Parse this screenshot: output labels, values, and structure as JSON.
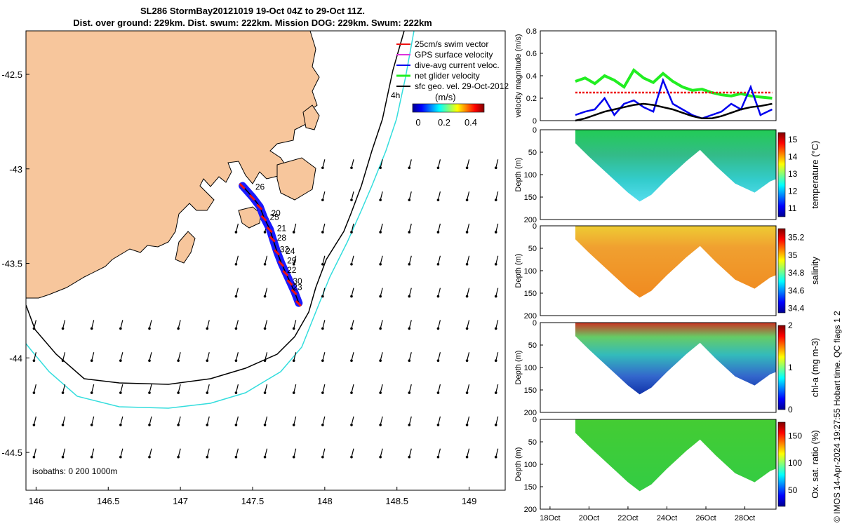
{
  "title_line1": "SL286 StormBay20121019 19-Oct 04Z to 29-Oct 11Z.",
  "title_line2": "Dist. over ground: 229km. Dist. swum: 222km. Mission DOG: 229km. Swum: 222km",
  "footer_note": "© IMOS 14-Apr-2024 19:27:55 Hobart time. QC flags 1  2",
  "colors": {
    "land": "#f7c69c",
    "coast": "#000000",
    "iso200": "#000000",
    "iso1000": "#33dddd",
    "track": "#1a1aff",
    "swim": "#ee1111",
    "gps": "#dd33dd",
    "current": "#0000ee",
    "net": "#22ee22",
    "sfcgeo": "#000000"
  },
  "chart_data": [
    {
      "type": "map",
      "name": "glider-track-map",
      "x_ticks": [
        "146",
        "146.5",
        "147",
        "147.5",
        "148",
        "148.5",
        "149"
      ],
      "x_tick_values": [
        146,
        146.5,
        147,
        147.5,
        148,
        148.5,
        149
      ],
      "y_ticks": [
        "-42.5",
        "-43",
        "-43.5",
        "-44",
        "-44.5"
      ],
      "y_tick_values": [
        -42.5,
        -43,
        -43.5,
        -44,
        -44.5
      ],
      "xlim": [
        145.93,
        149.25
      ],
      "ylim": [
        -44.7,
        -42.27
      ],
      "legend": {
        "placement": "top-right",
        "entries": [
          "25cm/s swim vector",
          "GPS surface velocity",
          "dive-avg current veloc.",
          "net glider velocity",
          "sfc geo. vel. 29-Oct-2012"
        ]
      },
      "colorbar": {
        "label": "(m/s)",
        "ticks": [
          "0",
          "0.2",
          "0.4"
        ],
        "tick_values": [
          0,
          0.2,
          0.4
        ],
        "range": [
          0,
          0.5
        ]
      },
      "isobath_label": "isobaths: 0   200   1000m",
      "time_label": "4h",
      "day_labels": [
        {
          "text": "26",
          "lon": 147.48,
          "lat": -43.11
        },
        {
          "text": "20",
          "lon": 147.59,
          "lat": -43.25
        },
        {
          "text": "25",
          "lon": 147.58,
          "lat": -43.27
        },
        {
          "text": "21",
          "lon": 147.63,
          "lat": -43.33
        },
        {
          "text": "28",
          "lon": 147.63,
          "lat": -43.38
        },
        {
          "text": "32",
          "lon": 147.65,
          "lat": -43.44
        },
        {
          "text": "24",
          "lon": 147.69,
          "lat": -43.45
        },
        {
          "text": "29",
          "lon": 147.7,
          "lat": -43.5
        },
        {
          "text": "22",
          "lon": 147.7,
          "lat": -43.55
        },
        {
          "text": "30",
          "lon": 147.74,
          "lat": -43.61
        },
        {
          "text": "23",
          "lon": 147.74,
          "lat": -43.64
        }
      ],
      "track": {
        "lon": [
          147.43,
          147.5,
          147.55,
          147.58,
          147.62,
          147.64,
          147.67,
          147.7,
          147.73,
          147.76,
          147.79,
          147.82
        ],
        "lat": [
          -43.09,
          -43.15,
          -43.2,
          -43.26,
          -43.32,
          -43.37,
          -43.44,
          -43.5,
          -43.55,
          -43.6,
          -43.65,
          -43.71
        ]
      }
    },
    {
      "type": "line",
      "name": "velocity-magnitude",
      "ylabel": "velocity magnitude (m/s)",
      "yticks": [
        "0",
        "0.2",
        "0.4",
        "0.6",
        "0.8"
      ],
      "ylim": [
        0,
        0.8
      ],
      "x": [
        19.3,
        19.8,
        20.3,
        20.8,
        21.3,
        21.8,
        22.3,
        22.8,
        23.3,
        23.8,
        24.3,
        24.8,
        25.3,
        25.8,
        26.3,
        26.8,
        27.3,
        27.8,
        28.3,
        28.8,
        29.4
      ],
      "series": [
        {
          "label_key": "net glider velocity",
          "color": "#22ee22",
          "values": [
            0.35,
            0.38,
            0.33,
            0.4,
            0.36,
            0.3,
            0.45,
            0.38,
            0.34,
            0.42,
            0.35,
            0.3,
            0.27,
            0.28,
            0.25,
            0.23,
            0.22,
            0.24,
            0.22,
            0.21,
            0.2
          ]
        },
        {
          "label_key": "swim",
          "color": "#ee1111",
          "values": [
            0.25,
            0.25,
            0.25,
            0.25,
            0.25,
            0.25,
            0.25,
            0.25,
            0.25,
            0.25,
            0.25,
            0.25,
            0.25,
            0.25,
            0.25,
            0.25,
            0.25,
            0.25,
            0.25,
            0.25,
            0.25
          ]
        },
        {
          "label_key": "dive-avg current veloc.",
          "color": "#0000ee",
          "values": [
            0.05,
            0.08,
            0.1,
            0.2,
            0.05,
            0.15,
            0.18,
            0.12,
            0.08,
            0.36,
            0.15,
            0.1,
            0.05,
            0.02,
            0.05,
            0.08,
            0.15,
            0.1,
            0.3,
            0.05,
            0.1
          ]
        },
        {
          "label_key": "sfc geo. vel.",
          "color": "#000000",
          "values": [
            0.0,
            0.02,
            0.05,
            0.08,
            0.1,
            0.12,
            0.14,
            0.15,
            0.14,
            0.12,
            0.1,
            0.07,
            0.04,
            0.02,
            0.02,
            0.04,
            0.07,
            0.1,
            0.12,
            0.13,
            0.15
          ]
        }
      ]
    },
    {
      "type": "heatmap",
      "name": "temperature-section",
      "ylabel": "Depth (m)",
      "yticks": [
        "0",
        "50",
        "100",
        "150",
        "200"
      ],
      "ylim": [
        0,
        200
      ],
      "colorbar_label": "temperature (°C)",
      "colorbar_ticks": [
        "11",
        "12",
        "13",
        "14",
        "15"
      ],
      "colorbar_range": [
        10.5,
        15.4
      ]
    },
    {
      "type": "heatmap",
      "name": "salinity-section",
      "ylabel": "Depth (m)",
      "yticks": [
        "0",
        "50",
        "100",
        "150",
        "200"
      ],
      "ylim": [
        0,
        200
      ],
      "colorbar_label": "salinity",
      "colorbar_ticks": [
        "34.4",
        "34.6",
        "34.8",
        "35",
        "35.2"
      ],
      "colorbar_range": [
        34.35,
        35.3
      ]
    },
    {
      "type": "heatmap",
      "name": "chla-section",
      "ylabel": "Depth (m)",
      "yticks": [
        "0",
        "50",
        "100",
        "150",
        "200"
      ],
      "ylim": [
        0,
        200
      ],
      "colorbar_label": "chl-a (mg m-3)",
      "colorbar_ticks": [
        "0",
        "1",
        "2"
      ],
      "colorbar_range": [
        0,
        2
      ]
    },
    {
      "type": "heatmap",
      "name": "oxygen-section",
      "ylabel": "Depth (m)",
      "yticks": [
        "0",
        "50",
        "100",
        "150",
        "200"
      ],
      "ylim": [
        0,
        200
      ],
      "colorbar_label": "Ox. sat. ratio (%)",
      "colorbar_ticks": [
        "50",
        "100",
        "150"
      ],
      "colorbar_range": [
        20,
        175
      ]
    },
    {
      "type": "axis",
      "name": "time-axis",
      "xticks": [
        "18Oct",
        "20Oct",
        "22Oct",
        "24Oct",
        "26Oct",
        "28Oct"
      ],
      "xtick_values": [
        18,
        20,
        22,
        24,
        26,
        28
      ],
      "xlim": [
        17.5,
        29.6
      ],
      "section_bottom": {
        "x": [
          19.3,
          20.0,
          21.0,
          22.0,
          22.6,
          23.2,
          24.0,
          25.0,
          25.7,
          26.5,
          27.5,
          28.5,
          29.3,
          29.6
        ],
        "depth": [
          30,
          60,
          100,
          140,
          160,
          145,
          110,
          70,
          45,
          80,
          120,
          140,
          115,
          110
        ]
      }
    }
  ]
}
